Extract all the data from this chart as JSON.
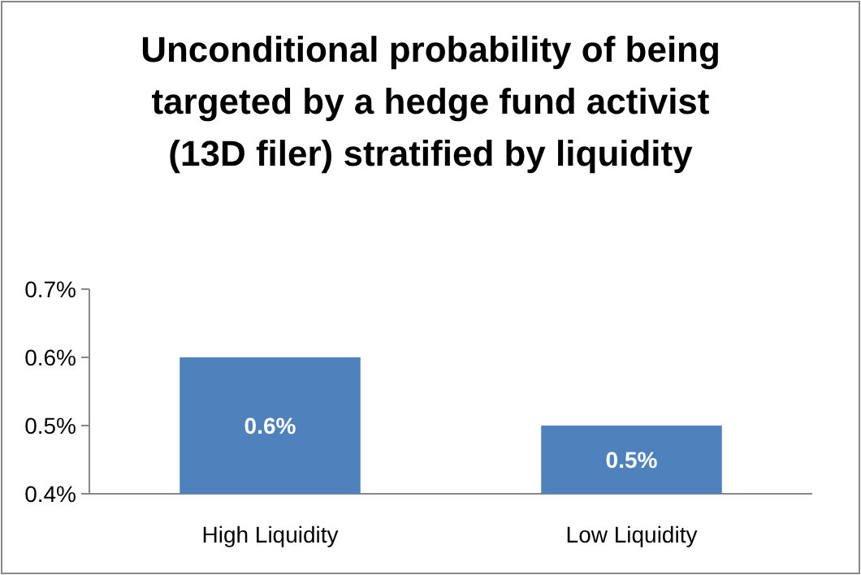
{
  "chart_data": {
    "type": "bar",
    "title": "Unconditional probability of being targeted by a hedge fund activist (13D filer) stratified by liquidity",
    "categories": [
      "High Liquidity",
      "Low Liquidity"
    ],
    "values": [
      0.6,
      0.5
    ],
    "color": "#4f81bd",
    "value_labels": [
      "0.6%",
      "0.5%"
    ],
    "ylim": [
      0.4,
      0.7
    ],
    "yticks": [
      {
        "value": 0.4,
        "label": "0.4%"
      },
      {
        "value": 0.5,
        "label": "0.5%"
      },
      {
        "value": 0.6,
        "label": "0.6%"
      },
      {
        "value": 0.7,
        "label": "0.7%"
      }
    ],
    "grid": false
  }
}
